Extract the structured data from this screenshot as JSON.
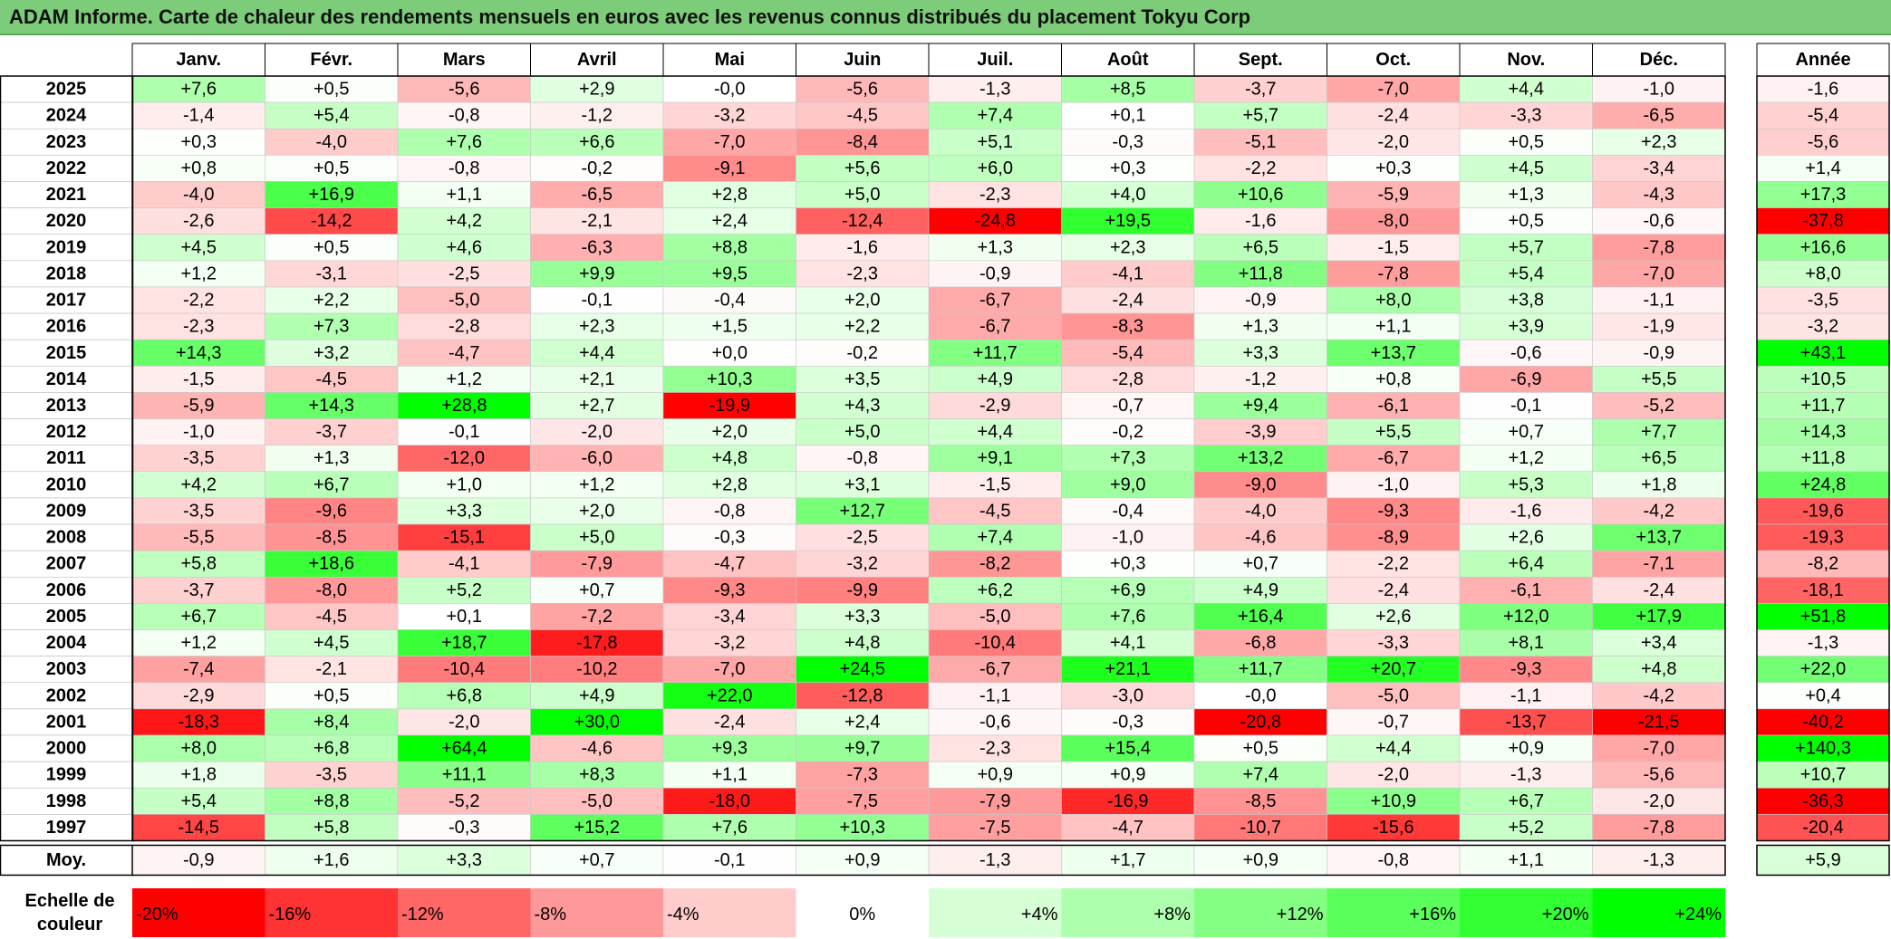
{
  "title": "ADAM Informe. Carte de chaleur des rendements mensuels en euros avec les revenus connus distribués du placement Tokyu Corp",
  "chart_data": {
    "type": "heatmap",
    "title": "ADAM Informe. Carte de chaleur des rendements mensuels en euros avec les revenus connus distribués du placement Tokyu Corp",
    "columns": [
      "Janv.",
      "Févr.",
      "Mars",
      "Avril",
      "Mai",
      "Juin",
      "Juil.",
      "Août",
      "Sept.",
      "Oct.",
      "Nov.",
      "Déc."
    ],
    "year_header": "Année",
    "rows": [
      {
        "year": "2025",
        "values": [
          7.6,
          0.5,
          -5.6,
          2.9,
          -0.0,
          -5.6,
          -1.3,
          8.5,
          -3.7,
          -7.0,
          4.4,
          -1.0
        ],
        "annual": -1.6
      },
      {
        "year": "2024",
        "values": [
          -1.4,
          5.4,
          -0.8,
          -1.2,
          -3.2,
          -4.5,
          7.4,
          0.1,
          5.7,
          -2.4,
          -3.3,
          -6.5
        ],
        "annual": -5.4
      },
      {
        "year": "2023",
        "values": [
          0.3,
          -4.0,
          7.6,
          6.6,
          -7.0,
          -8.4,
          5.1,
          -0.3,
          -5.1,
          -2.0,
          0.5,
          2.3
        ],
        "annual": -5.6
      },
      {
        "year": "2022",
        "values": [
          0.8,
          0.5,
          -0.8,
          -0.2,
          -9.1,
          5.6,
          6.0,
          0.3,
          -2.2,
          0.3,
          4.5,
          -3.4
        ],
        "annual": 1.4
      },
      {
        "year": "2021",
        "values": [
          -4.0,
          16.9,
          1.1,
          -6.5,
          2.8,
          5.0,
          -2.3,
          4.0,
          10.6,
          -5.9,
          1.3,
          -4.3
        ],
        "annual": 17.3
      },
      {
        "year": "2020",
        "values": [
          -2.6,
          -14.2,
          4.2,
          -2.1,
          2.4,
          -12.4,
          -24.8,
          19.5,
          -1.6,
          -8.0,
          0.5,
          -0.6
        ],
        "annual": -37.8
      },
      {
        "year": "2019",
        "values": [
          4.5,
          0.5,
          4.6,
          -6.3,
          8.8,
          -1.6,
          1.3,
          2.3,
          6.5,
          -1.5,
          5.7,
          -7.8
        ],
        "annual": 16.6
      },
      {
        "year": "2018",
        "values": [
          1.2,
          -3.1,
          -2.5,
          9.9,
          9.5,
          -2.3,
          -0.9,
          -4.1,
          11.8,
          -7.8,
          5.4,
          -7.0
        ],
        "annual": 8.0
      },
      {
        "year": "2017",
        "values": [
          -2.2,
          2.2,
          -5.0,
          -0.1,
          -0.4,
          2.0,
          -6.7,
          -2.4,
          -0.9,
          8.0,
          3.8,
          -1.1
        ],
        "annual": -3.5
      },
      {
        "year": "2016",
        "values": [
          -2.3,
          7.3,
          -2.8,
          2.3,
          1.5,
          2.2,
          -6.7,
          -8.3,
          1.3,
          1.1,
          3.9,
          -1.9
        ],
        "annual": -3.2
      },
      {
        "year": "2015",
        "values": [
          14.3,
          3.2,
          -4.7,
          4.4,
          0.0,
          -0.2,
          11.7,
          -5.4,
          3.3,
          13.7,
          -0.6,
          -0.9
        ],
        "annual": 43.1
      },
      {
        "year": "2014",
        "values": [
          -1.5,
          -4.5,
          1.2,
          2.1,
          10.3,
          3.5,
          4.9,
          -2.8,
          -1.2,
          0.8,
          -6.9,
          5.5
        ],
        "annual": 10.5
      },
      {
        "year": "2013",
        "values": [
          -5.9,
          14.3,
          28.8,
          2.7,
          -19.9,
          4.3,
          -2.9,
          -0.7,
          9.4,
          -6.1,
          -0.1,
          -5.2
        ],
        "annual": 11.7
      },
      {
        "year": "2012",
        "values": [
          -1.0,
          -3.7,
          -0.1,
          -2.0,
          2.0,
          5.0,
          4.4,
          -0.2,
          -3.9,
          5.5,
          0.7,
          7.7
        ],
        "annual": 14.3
      },
      {
        "year": "2011",
        "values": [
          -3.5,
          1.3,
          -12.0,
          -6.0,
          4.8,
          -0.8,
          9.1,
          7.3,
          13.2,
          -6.7,
          1.2,
          6.5
        ],
        "annual": 11.8
      },
      {
        "year": "2010",
        "values": [
          4.2,
          6.7,
          1.0,
          1.2,
          2.8,
          3.1,
          -1.5,
          9.0,
          -9.0,
          -1.0,
          5.3,
          1.8
        ],
        "annual": 24.8
      },
      {
        "year": "2009",
        "values": [
          -3.5,
          -9.6,
          3.3,
          2.0,
          -0.8,
          12.7,
          -4.5,
          -0.4,
          -4.0,
          -9.3,
          -1.6,
          -4.2
        ],
        "annual": -19.6
      },
      {
        "year": "2008",
        "values": [
          -5.5,
          -8.5,
          -15.1,
          5.0,
          -0.3,
          -2.5,
          7.4,
          -1.0,
          -4.6,
          -8.9,
          2.6,
          13.7
        ],
        "annual": -19.3
      },
      {
        "year": "2007",
        "values": [
          5.8,
          18.6,
          -4.1,
          -7.9,
          -4.7,
          -3.2,
          -8.2,
          0.3,
          0.7,
          -2.2,
          6.4,
          -7.1
        ],
        "annual": -8.2
      },
      {
        "year": "2006",
        "values": [
          -3.7,
          -8.0,
          5.2,
          0.7,
          -9.3,
          -9.9,
          6.2,
          6.9,
          4.9,
          -2.4,
          -6.1,
          -2.4
        ],
        "annual": -18.1
      },
      {
        "year": "2005",
        "values": [
          6.7,
          -4.5,
          0.1,
          -7.2,
          -3.4,
          3.3,
          -5.0,
          7.6,
          16.4,
          2.6,
          12.0,
          17.9
        ],
        "annual": 51.8
      },
      {
        "year": "2004",
        "values": [
          1.2,
          4.5,
          18.7,
          -17.8,
          -3.2,
          4.8,
          -10.4,
          4.1,
          -6.8,
          -3.3,
          8.1,
          3.4
        ],
        "annual": -1.3
      },
      {
        "year": "2003",
        "values": [
          -7.4,
          -2.1,
          -10.4,
          -10.2,
          -7.0,
          24.5,
          -6.7,
          21.1,
          11.7,
          20.7,
          -9.3,
          4.8
        ],
        "annual": 22.0
      },
      {
        "year": "2002",
        "values": [
          -2.9,
          0.5,
          6.8,
          4.9,
          22.0,
          -12.8,
          -1.1,
          -3.0,
          -0.0,
          -5.0,
          -1.1,
          -4.2
        ],
        "annual": 0.4
      },
      {
        "year": "2001",
        "values": [
          -18.3,
          8.4,
          -2.0,
          30.0,
          -2.4,
          2.4,
          -0.6,
          -0.3,
          -20.8,
          -0.7,
          -13.7,
          -21.5
        ],
        "annual": -40.2
      },
      {
        "year": "2000",
        "values": [
          8.0,
          6.8,
          64.4,
          -4.6,
          9.3,
          9.7,
          -2.3,
          15.4,
          0.5,
          4.4,
          0.9,
          -7.0
        ],
        "annual": 140.3
      },
      {
        "year": "1999",
        "values": [
          1.8,
          -3.5,
          11.1,
          8.3,
          1.1,
          -7.3,
          0.9,
          0.9,
          7.4,
          -2.0,
          -1.3,
          -5.6
        ],
        "annual": 10.7
      },
      {
        "year": "1998",
        "values": [
          5.4,
          8.8,
          -5.2,
          -5.0,
          -18.0,
          -7.5,
          -7.9,
          -16.9,
          -8.5,
          10.9,
          6.7,
          -2.0
        ],
        "annual": -36.3
      },
      {
        "year": "1997",
        "values": [
          -14.5,
          5.8,
          -0.3,
          15.2,
          7.6,
          10.3,
          -7.5,
          -4.7,
          -10.7,
          -15.6,
          5.2,
          -7.8
        ],
        "annual": -20.4
      }
    ],
    "average": {
      "label": "Moy.",
      "values": [
        -0.9,
        1.6,
        3.3,
        0.7,
        -0.1,
        0.9,
        -1.3,
        1.7,
        0.9,
        -0.8,
        1.1,
        -1.3
      ],
      "annual": 5.9
    },
    "scale": {
      "label": "Echelle de couleur",
      "stops": [
        {
          "text": "-20%",
          "value": -20,
          "color": "#ff0000"
        },
        {
          "text": "-16%",
          "value": -16,
          "color": "#ff3333"
        },
        {
          "text": "-12%",
          "value": -12,
          "color": "#ff6666"
        },
        {
          "text": "-8%",
          "value": -8,
          "color": "#ff9999"
        },
        {
          "text": "-4%",
          "value": -4,
          "color": "#ffcccc"
        },
        {
          "text": "0%",
          "value": 0,
          "color": "#ffffff"
        },
        {
          "text": "+4%",
          "value": 4,
          "color": "#d6ffd6"
        },
        {
          "text": "+8%",
          "value": 8,
          "color": "#adffad"
        },
        {
          "text": "+12%",
          "value": 12,
          "color": "#84ff84"
        },
        {
          "text": "+16%",
          "value": 16,
          "color": "#5bff5b"
        },
        {
          "text": "+20%",
          "value": 20,
          "color": "#32ff32"
        },
        {
          "text": "+24%",
          "value": 24,
          "color": "#00ff00"
        }
      ]
    },
    "colors": {
      "negative_max": "#ff0000",
      "zero": "#ffffff",
      "positive_max": "#00ff00",
      "title_bar": "#7dcc7a"
    }
  }
}
